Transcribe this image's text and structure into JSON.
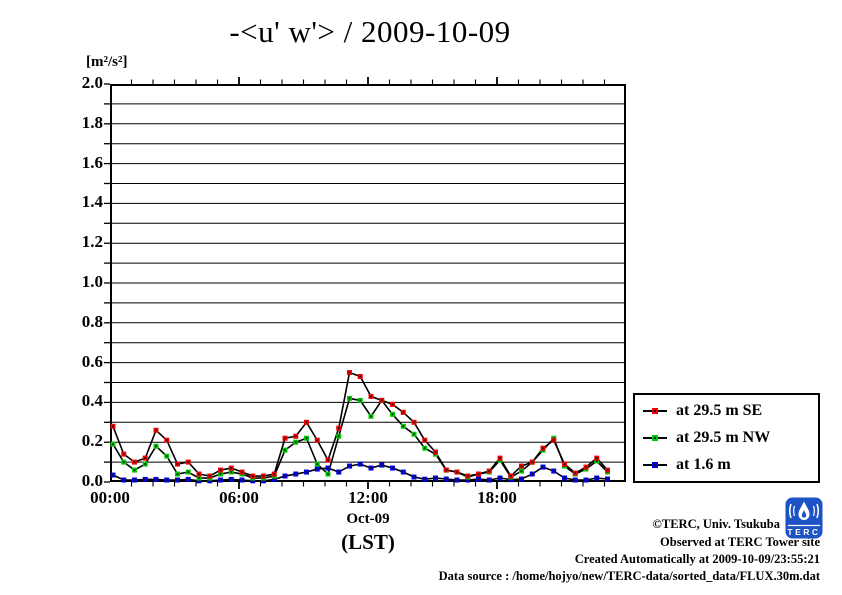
{
  "title": "-<u' w'> / 2009-10-09",
  "y_axis": {
    "unit_label": "[m²/s²]"
  },
  "x_axis": {
    "date_label": "Oct-09",
    "tz_label": "(LST)"
  },
  "legend": {
    "items": [
      {
        "label": "at 29.5 m SE",
        "color": "#f00000"
      },
      {
        "label": "at 29.5 m NW",
        "color": "#00c800"
      },
      {
        "label": "at 1.6 m",
        "color": "#0000e0"
      }
    ]
  },
  "footer": {
    "lines": [
      "©TERC, Univ. Tsukuba",
      "Observed at TERC Tower site",
      "Created Automatically at 2009-10-09/23:55:21",
      "Data source : /home/hojyo/new/TERC-data/sorted_data/FLUX.30m.dat"
    ],
    "logo_text": "TERC"
  },
  "chart_data": {
    "type": "line",
    "title": "-<u' w'> / 2009-10-09",
    "ylabel": "[m2/s2]",
    "xlabel": "Oct-09 (LST)",
    "ylim": [
      0.0,
      2.0
    ],
    "xlim_hours": [
      0,
      24
    ],
    "grid_step": 0.1,
    "y_tick_labels": [
      "0.0",
      "0.2",
      "0.4",
      "0.6",
      "0.8",
      "1.0",
      "1.2",
      "1.4",
      "1.6",
      "1.8",
      "2.0"
    ],
    "x_ticks": [
      {
        "hour": 0,
        "label": "00:00"
      },
      {
        "hour": 6,
        "label": "06:00"
      },
      {
        "hour": 12,
        "label": "12:00"
      },
      {
        "hour": 18,
        "label": "18:00"
      }
    ],
    "x_times": [
      "00:00",
      "00:30",
      "01:00",
      "01:30",
      "02:00",
      "02:30",
      "03:00",
      "03:30",
      "04:00",
      "04:30",
      "05:00",
      "05:30",
      "06:00",
      "06:30",
      "07:00",
      "07:30",
      "08:00",
      "08:30",
      "09:00",
      "09:30",
      "10:00",
      "10:30",
      "11:00",
      "11:30",
      "12:00",
      "12:30",
      "13:00",
      "13:30",
      "14:00",
      "14:30",
      "15:00",
      "15:30",
      "16:00",
      "16:30",
      "17:00",
      "17:30",
      "18:00",
      "18:30",
      "19:00",
      "19:30",
      "20:00",
      "20:30",
      "21:00",
      "21:30",
      "22:00",
      "22:30",
      "23:00"
    ],
    "series": [
      {
        "name": "at 29.5 m SE",
        "color": "#f00000",
        "values": [
          0.28,
          0.14,
          0.1,
          0.12,
          0.26,
          0.21,
          0.09,
          0.1,
          0.04,
          0.03,
          0.06,
          0.07,
          0.05,
          0.03,
          0.03,
          0.04,
          0.22,
          0.23,
          0.3,
          0.21,
          0.11,
          0.27,
          0.55,
          0.53,
          0.43,
          0.41,
          0.39,
          0.35,
          0.3,
          0.21,
          0.15,
          0.06,
          0.05,
          0.03,
          0.04,
          0.055,
          0.12,
          0.03,
          0.08,
          0.1,
          0.17,
          0.21,
          0.09,
          0.045,
          0.075,
          0.12,
          0.06
        ]
      },
      {
        "name": "at 29.5 m NW",
        "color": "#00c800",
        "values": [
          0.19,
          0.1,
          0.06,
          0.09,
          0.18,
          0.13,
          0.04,
          0.05,
          0.02,
          0.02,
          0.04,
          0.05,
          0.04,
          0.02,
          0.02,
          0.03,
          0.16,
          0.2,
          0.22,
          0.09,
          0.04,
          0.23,
          0.42,
          0.41,
          0.33,
          0.41,
          0.34,
          0.28,
          0.24,
          0.17,
          0.14,
          0.06,
          0.05,
          0.025,
          0.04,
          0.05,
          0.11,
          0.025,
          0.055,
          0.1,
          0.16,
          0.22,
          0.08,
          0.04,
          0.065,
          0.105,
          0.05
        ]
      },
      {
        "name": "at 1.6 m",
        "color": "#0000e0",
        "values": [
          0.035,
          0.01,
          0.01,
          0.013,
          0.013,
          0.01,
          0.01,
          0.013,
          0.006,
          0.006,
          0.01,
          0.013,
          0.01,
          0.006,
          0.006,
          0.013,
          0.03,
          0.04,
          0.05,
          0.065,
          0.07,
          0.05,
          0.08,
          0.09,
          0.07,
          0.085,
          0.07,
          0.05,
          0.025,
          0.014,
          0.02,
          0.015,
          0.01,
          0.01,
          0.015,
          0.01,
          0.02,
          0.012,
          0.015,
          0.04,
          0.075,
          0.055,
          0.02,
          0.01,
          0.01,
          0.02,
          0.015
        ]
      }
    ],
    "legend_position": "right-bottom-outside",
    "grid": true
  }
}
